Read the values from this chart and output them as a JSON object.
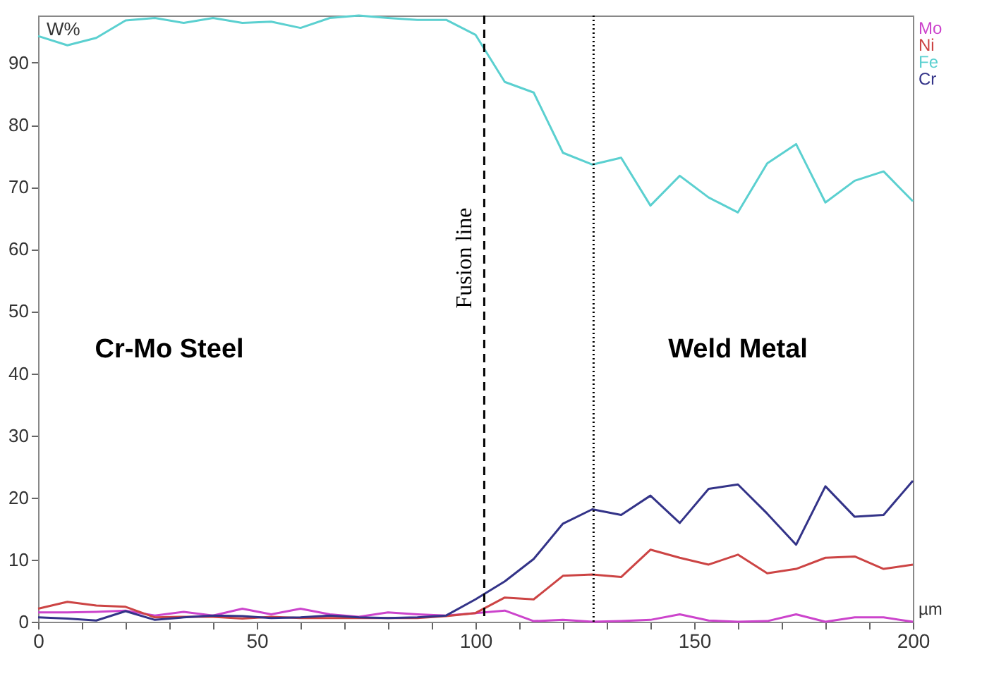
{
  "chart_data": {
    "type": "line",
    "ylabel": "W%",
    "xlabel": "µm",
    "x": [
      0,
      6.7,
      13.3,
      20,
      26.7,
      33.3,
      40,
      46.7,
      53.3,
      60,
      66.7,
      73.3,
      80,
      86.7,
      93.3,
      100,
      106.7,
      113.3,
      120,
      126.7,
      133.3,
      140,
      146.7,
      153.3,
      160,
      166.7,
      173.3,
      180,
      186.7,
      193.3,
      200
    ],
    "series": [
      {
        "name": "Mo",
        "color": "#cc44cc",
        "values": [
          1.5,
          1.5,
          1.6,
          1.8,
          1.0,
          1.6,
          1.0,
          2.1,
          1.2,
          2.1,
          1.2,
          0.8,
          1.5,
          1.2,
          1.0,
          1.4,
          1.8,
          0.1,
          0.3,
          0,
          0.1,
          0.3,
          1.2,
          0.2,
          0,
          0.1,
          1.2,
          0,
          0.7,
          0.7,
          0
        ]
      },
      {
        "name": "Ni",
        "color": "#cc4444",
        "values": [
          2.1,
          3.2,
          2.6,
          2.4,
          0.7,
          0.8,
          0.8,
          0.5,
          0.8,
          0.6,
          0.6,
          0.6,
          0.6,
          0.6,
          0.9,
          1.4,
          3.9,
          3.6,
          7.4,
          7.6,
          7.2,
          11.6,
          10.3,
          9.2,
          10.8,
          7.8,
          8.5,
          10.3,
          10.5,
          8.5,
          9.2
        ]
      },
      {
        "name": "Fe",
        "color": "#5bd0d0",
        "values": [
          94.3,
          92.8,
          94.0,
          96.8,
          97.2,
          96.4,
          97.2,
          96.4,
          96.6,
          95.6,
          97.2,
          97.6,
          97.2,
          96.9,
          96.9,
          94.5,
          86.9,
          85.2,
          75.5,
          73.6,
          74.7,
          67.0,
          71.8,
          68.3,
          65.9,
          73.8,
          76.9,
          67.5,
          71.0,
          72.5,
          67.7
        ]
      },
      {
        "name": "Cr",
        "color": "#333388",
        "values": [
          0.7,
          0.5,
          0.2,
          1.7,
          0.3,
          0.7,
          1.0,
          0.9,
          0.6,
          0.7,
          1.0,
          0.7,
          0.6,
          0.7,
          1.0,
          3.6,
          6.5,
          10.1,
          15.8,
          18.1,
          17.2,
          20.3,
          15.9,
          21.4,
          22.1,
          17.4,
          12.4,
          21.8,
          16.9,
          17.2,
          22.7
        ]
      }
    ],
    "xlim": [
      0,
      200
    ],
    "xticks": [
      0,
      {
        "value": 10,
        "label": null
      },
      {
        "value": 20,
        "label": null
      },
      {
        "value": 30,
        "label": null
      },
      {
        "value": 40,
        "label": null
      },
      50,
      {
        "value": 60,
        "label": null
      },
      {
        "value": 70,
        "label": null
      },
      {
        "value": 80,
        "label": null
      },
      {
        "value": 90,
        "label": null
      },
      100,
      {
        "value": 110,
        "label": null
      },
      {
        "value": 120,
        "label": null
      },
      {
        "value": 130,
        "label": null
      },
      {
        "value": 140,
        "label": null
      },
      150,
      {
        "value": 160,
        "label": null
      },
      {
        "value": 170,
        "label": null
      },
      {
        "value": 180,
        "label": null
      },
      {
        "value": 190,
        "label": null
      },
      200
    ],
    "ylim": [
      0,
      97.6
    ],
    "yticks": [
      0,
      10,
      20,
      30,
      40,
      50,
      60,
      70,
      80,
      90
    ],
    "ref_lines": [
      {
        "axis": "x",
        "value": 102,
        "label": "Fusion line",
        "line_style": "dashed",
        "color": "#000000"
      },
      {
        "axis": "x",
        "value": 127,
        "line_style": "dotted",
        "color": "#000000"
      }
    ],
    "annotations": [
      "Cr-Mo Steel",
      "Weld Metal"
    ],
    "legend": "top right",
    "grid": false,
    "marker": "none",
    "line_style": "solid"
  }
}
